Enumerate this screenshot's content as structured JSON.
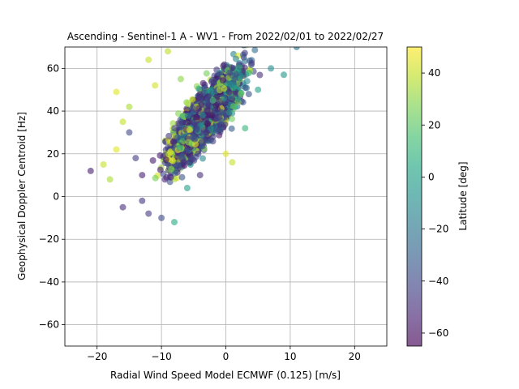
{
  "chart_data": {
    "type": "scatter",
    "title": "Ascending - Sentinel-1 A - WV1 - From 2022/02/01 to 2022/02/27",
    "xlabel": "Radial Wind Speed Model ECMWF (0.125) [m/s]",
    "ylabel": "Geophysical Doppler Centroid [Hz]",
    "xlim": [
      -25,
      25
    ],
    "ylim": [
      -70,
      70
    ],
    "xticks": [
      -20,
      -10,
      0,
      10,
      20
    ],
    "yticks": [
      -60,
      -40,
      -20,
      0,
      20,
      40,
      60
    ],
    "grid": true,
    "colorbar": {
      "label": "Latitude [deg]",
      "range": [
        -65,
        50
      ],
      "ticks": [
        -60,
        -40,
        -20,
        0,
        20,
        40
      ],
      "colormap": "viridis",
      "alpha": 0.6
    },
    "point_cloud": {
      "approx_count": 2400,
      "trend_slope_hz_per_ms": 3.3,
      "trend_intercept_hz": 48,
      "spread_hz": 12,
      "x_range": [
        -21,
        12
      ],
      "note_color_by_latitude": "high latitudes (yellow) on the left/top, southern latitudes (purple) dominate lower left"
    },
    "points_sample": [
      {
        "x": -21,
        "y": 12,
        "lat": -55
      },
      {
        "x": -19,
        "y": 15,
        "lat": 40
      },
      {
        "x": -18,
        "y": 8,
        "lat": 35
      },
      {
        "x": -17,
        "y": 22,
        "lat": 45
      },
      {
        "x": -17,
        "y": 49,
        "lat": 45
      },
      {
        "x": -16,
        "y": 35,
        "lat": 40
      },
      {
        "x": -16,
        "y": -5,
        "lat": -50
      },
      {
        "x": -15,
        "y": 30,
        "lat": -40
      },
      {
        "x": -15,
        "y": 42,
        "lat": 35
      },
      {
        "x": -14,
        "y": 18,
        "lat": -45
      },
      {
        "x": -13,
        "y": -2,
        "lat": -48
      },
      {
        "x": -13,
        "y": 10,
        "lat": -55
      },
      {
        "x": -12,
        "y": 64,
        "lat": 40
      },
      {
        "x": -12,
        "y": -8,
        "lat": -45
      },
      {
        "x": -11,
        "y": 52,
        "lat": 42
      },
      {
        "x": -10,
        "y": -10,
        "lat": -40
      },
      {
        "x": -9,
        "y": 68,
        "lat": 38
      },
      {
        "x": -8,
        "y": -12,
        "lat": 5
      },
      {
        "x": -7,
        "y": 55,
        "lat": 30
      },
      {
        "x": -6,
        "y": 4,
        "lat": 0
      },
      {
        "x": -5,
        "y": 28,
        "lat": -35
      },
      {
        "x": -4,
        "y": 10,
        "lat": -50
      },
      {
        "x": -2,
        "y": 45,
        "lat": 15
      },
      {
        "x": 0,
        "y": 20,
        "lat": 45
      },
      {
        "x": 1,
        "y": 16,
        "lat": 40
      },
      {
        "x": 3,
        "y": 32,
        "lat": 10
      },
      {
        "x": 5,
        "y": 50,
        "lat": 0
      },
      {
        "x": 7,
        "y": 60,
        "lat": -10
      },
      {
        "x": 9,
        "y": 57,
        "lat": -5
      },
      {
        "x": 11,
        "y": 70,
        "lat": -20
      }
    ]
  }
}
